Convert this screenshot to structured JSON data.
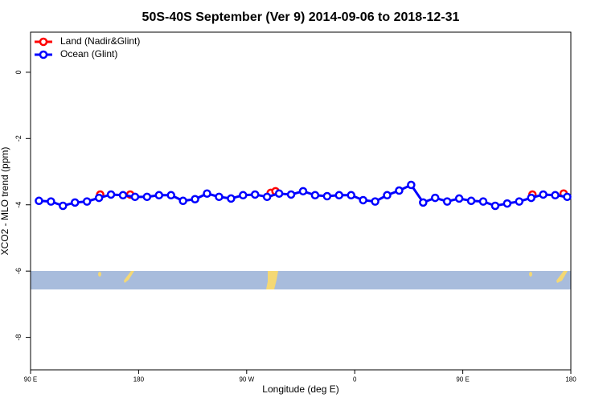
{
  "chart_data": {
    "type": "line",
    "title": "50S-40S September (Ver 9)   2014-09-06 to 2018-12-31",
    "x_label": "Longitude (deg E)",
    "y_label": "XCO2 - MLO trend (ppm)",
    "xlim": [
      90,
      540
    ],
    "xticks": [
      {
        "value": 90,
        "label": "90 E"
      },
      180,
      {
        "value": 270,
        "label": "90 W"
      },
      {
        "value": 360,
        "label": "0"
      },
      {
        "value": 450,
        "label": "90 E"
      },
      {
        "value": 540,
        "label": "180"
      }
    ],
    "ylim": [
      -8.98,
      1.21
    ],
    "yticks": [
      0,
      -2,
      -4,
      -6,
      -8
    ],
    "legend": "top-left",
    "series": [
      {
        "name": "Land (Nadir&Glint)",
        "color": "#ff0000",
        "x": [
          148,
          173,
          290,
          294,
          508,
          534
        ],
        "values": [
          -3.69,
          -3.69,
          -3.64,
          -3.59,
          -3.69,
          -3.66
        ]
      },
      {
        "name": "Ocean (Glint)",
        "color": "#0000ff",
        "x": [
          97,
          107,
          117,
          127,
          137,
          147,
          157,
          167,
          177,
          187,
          197,
          207,
          217,
          227,
          237,
          247,
          257,
          267,
          277,
          287,
          297,
          307,
          317,
          327,
          337,
          347,
          357,
          367,
          377,
          387,
          397,
          407,
          417,
          427,
          437,
          447,
          457,
          467,
          477,
          487,
          497,
          507,
          517,
          527,
          537
        ],
        "values": [
          -3.88,
          -3.9,
          -4.03,
          -3.93,
          -3.9,
          -3.79,
          -3.69,
          -3.71,
          -3.76,
          -3.76,
          -3.71,
          -3.71,
          -3.88,
          -3.83,
          -3.66,
          -3.76,
          -3.81,
          -3.71,
          -3.69,
          -3.76,
          -3.66,
          -3.69,
          -3.59,
          -3.71,
          -3.74,
          -3.71,
          -3.71,
          -3.86,
          -3.9,
          -3.71,
          -3.57,
          -3.4,
          -3.93,
          -3.79,
          -3.9,
          -3.81,
          -3.88,
          -3.9,
          -4.03,
          -3.96,
          -3.9,
          -3.79,
          -3.69,
          -3.71,
          -3.76
        ]
      }
    ]
  }
}
